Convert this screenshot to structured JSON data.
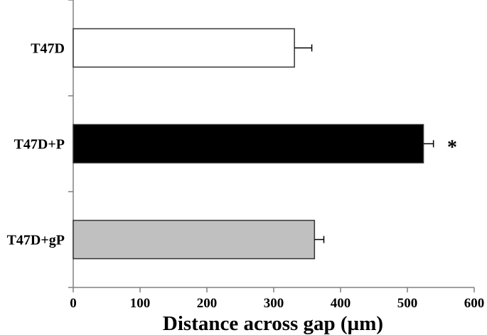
{
  "chart_data": {
    "type": "bar",
    "orientation": "horizontal",
    "categories": [
      "T47D",
      "T47D+P",
      "T47D+gP"
    ],
    "values": [
      331,
      524,
      361
    ],
    "errors": [
      26,
      15,
      14
    ],
    "bar_colors": [
      "#ffffff",
      "#000000",
      "#c0c0c0"
    ],
    "annotations": [
      "",
      "*",
      ""
    ],
    "xlabel": "Distance across gap (µm)",
    "ylabel": "",
    "title": "",
    "xlim": [
      0,
      600
    ],
    "xticks": [
      "0",
      "100",
      "200",
      "300",
      "400",
      "500",
      "600"
    ],
    "grid": false
  }
}
